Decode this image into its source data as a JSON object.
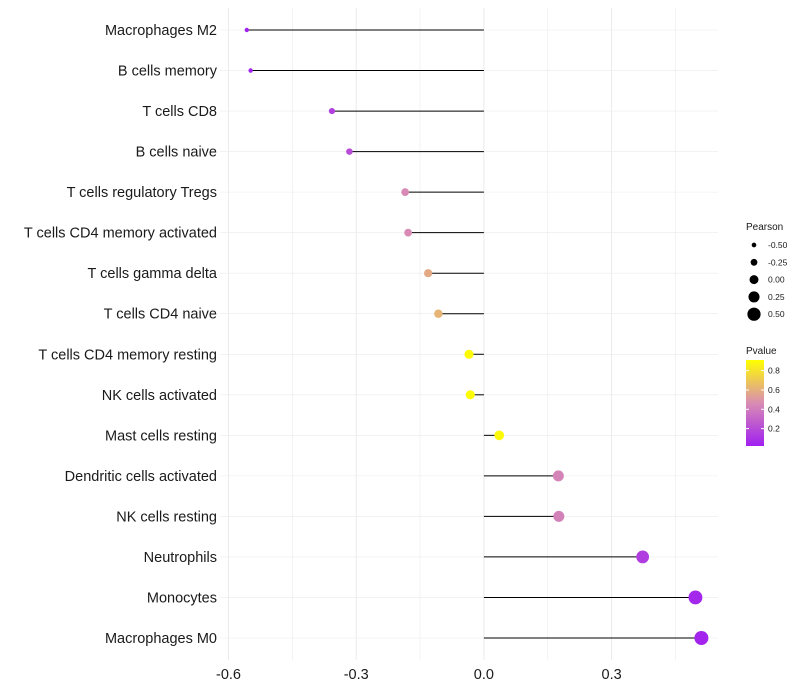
{
  "chart_data": {
    "type": "lollipop",
    "title": "",
    "xlabel": "",
    "ylabel": "",
    "xlim": [
      -0.62,
      0.55
    ],
    "x_ticks": [
      -0.6,
      -0.3,
      0.0,
      0.3
    ],
    "x_tick_labels": [
      "-0.6",
      "-0.3",
      "0.0",
      "0.3"
    ],
    "grid": true,
    "categories": [
      "Macrophages M2",
      "B cells memory",
      "T cells CD8",
      "B cells naive",
      "T cells regulatory  Tregs ",
      "T cells CD4 memory activated",
      "T cells gamma delta",
      "T cells CD4 naive",
      "T cells CD4 memory resting",
      "NK cells activated",
      "Mast cells resting",
      "Dendritic cells activated",
      "NK cells resting",
      "Neutrophils",
      "Monocytes",
      "Macrophages M0"
    ],
    "values": [
      -0.557,
      -0.548,
      -0.357,
      -0.316,
      -0.185,
      -0.178,
      -0.131,
      -0.107,
      -0.035,
      -0.032,
      0.036,
      0.175,
      0.176,
      0.373,
      0.497,
      0.511
    ],
    "pvalues": [
      0.03,
      0.04,
      0.15,
      0.2,
      0.45,
      0.46,
      0.58,
      0.62,
      0.89,
      0.9,
      0.89,
      0.43,
      0.42,
      0.14,
      0.05,
      0.04
    ],
    "legend": {
      "size": {
        "title": "Pearson",
        "values": [
          -0.5,
          -0.25,
          0.0,
          0.25,
          0.5
        ],
        "labels": [
          "-0.50",
          "-0.25",
          "0.00",
          "0.25",
          "0.50"
        ]
      },
      "color": {
        "title": "Pvalue",
        "ticks": [
          0.8,
          0.6,
          0.4,
          0.2
        ],
        "tick_labels": [
          "0.8",
          "0.6",
          "0.4",
          "0.2"
        ],
        "range": [
          0.02,
          0.91
        ],
        "low_color": "#a020f0",
        "mid_color": "#d98cb3",
        "high_color": "#ffff00"
      },
      "placement": "right"
    },
    "stem_color": "#000000",
    "grid_color": "#ebebeb"
  }
}
